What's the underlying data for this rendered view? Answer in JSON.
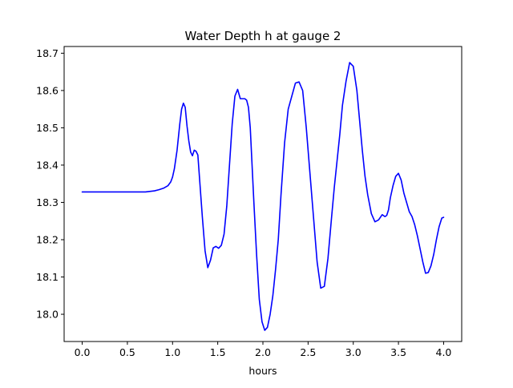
{
  "chart_data": {
    "type": "line",
    "title": "Water Depth h at gauge 2",
    "xlabel": "hours",
    "ylabel": "",
    "xlim": [
      -0.2,
      4.2
    ],
    "ylim": [
      17.927,
      18.718
    ],
    "xticks": [
      0.0,
      0.5,
      1.0,
      1.5,
      2.0,
      2.5,
      3.0,
      3.5,
      4.0
    ],
    "xtick_labels": [
      "0.0",
      "0.5",
      "1.0",
      "1.5",
      "2.0",
      "2.5",
      "3.0",
      "3.5",
      "4.0"
    ],
    "yticks": [
      18.0,
      18.1,
      18.2,
      18.3,
      18.4,
      18.5,
      18.6,
      18.7
    ],
    "ytick_labels": [
      "18.0",
      "18.1",
      "18.2",
      "18.3",
      "18.4",
      "18.5",
      "18.6",
      "18.7"
    ],
    "grid": false,
    "line_color": "#0000ff",
    "series": [
      {
        "x": [
          0.0,
          0.25,
          0.5,
          0.7,
          0.8,
          0.85,
          0.9,
          0.95,
          0.98,
          1.0,
          1.02,
          1.05,
          1.08,
          1.1,
          1.12,
          1.14,
          1.16,
          1.18,
          1.2,
          1.22,
          1.24,
          1.26,
          1.28,
          1.3,
          1.33,
          1.36,
          1.39,
          1.42,
          1.45,
          1.48,
          1.51,
          1.54,
          1.57,
          1.6,
          1.63,
          1.66,
          1.69,
          1.72,
          1.75,
          1.78,
          1.8,
          1.82,
          1.84,
          1.86,
          1.88,
          1.9,
          1.93,
          1.96,
          1.99,
          2.02,
          2.05,
          2.08,
          2.11,
          2.14,
          2.17,
          2.2,
          2.24,
          2.28,
          2.32,
          2.36,
          2.4,
          2.44,
          2.48,
          2.52,
          2.56,
          2.58,
          2.6,
          2.64,
          2.68,
          2.72,
          2.76,
          2.79,
          2.82,
          2.85,
          2.88,
          2.92,
          2.96,
          3.0,
          3.04,
          3.07,
          3.1,
          3.13,
          3.16,
          3.2,
          3.24,
          3.28,
          3.32,
          3.35,
          3.37,
          3.39,
          3.41,
          3.44,
          3.47,
          3.5,
          3.53,
          3.56,
          3.59,
          3.62,
          3.65,
          3.68,
          3.71,
          3.74,
          3.77,
          3.8,
          3.83,
          3.86,
          3.89,
          3.92,
          3.95,
          3.98,
          4.0
        ],
        "y": [
          18.328,
          18.328,
          18.328,
          18.328,
          18.331,
          18.334,
          18.338,
          18.345,
          18.355,
          18.368,
          18.39,
          18.44,
          18.51,
          18.55,
          18.566,
          18.555,
          18.505,
          18.465,
          18.435,
          18.425,
          18.44,
          18.437,
          18.427,
          18.36,
          18.26,
          18.17,
          18.125,
          18.145,
          18.178,
          18.182,
          18.177,
          18.185,
          18.215,
          18.29,
          18.4,
          18.51,
          18.585,
          18.603,
          18.578,
          18.578,
          18.578,
          18.574,
          18.555,
          18.5,
          18.4,
          18.3,
          18.16,
          18.04,
          17.98,
          17.957,
          17.965,
          18.0,
          18.05,
          18.12,
          18.2,
          18.32,
          18.46,
          18.55,
          18.585,
          18.62,
          18.623,
          18.6,
          18.5,
          18.38,
          18.26,
          18.2,
          18.14,
          18.07,
          18.075,
          18.15,
          18.26,
          18.34,
          18.41,
          18.48,
          18.56,
          18.625,
          18.675,
          18.665,
          18.6,
          18.52,
          18.44,
          18.37,
          18.32,
          18.27,
          18.248,
          18.253,
          18.267,
          18.262,
          18.265,
          18.28,
          18.312,
          18.345,
          18.37,
          18.378,
          18.36,
          18.325,
          18.3,
          18.275,
          18.262,
          18.24,
          18.21,
          18.175,
          18.14,
          18.11,
          18.112,
          18.13,
          18.16,
          18.2,
          18.235,
          18.258,
          18.26
        ]
      }
    ]
  }
}
